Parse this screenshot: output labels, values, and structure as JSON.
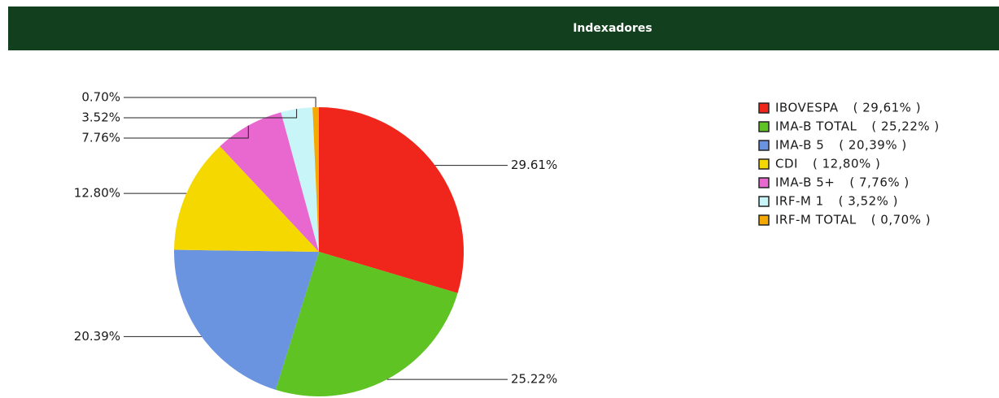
{
  "chart_data": {
    "type": "pie",
    "title": "Indexadores",
    "categories": [
      "IBOVESPA",
      "IMA-B TOTAL",
      "IMA-B 5",
      "CDI",
      "IMA-B 5+",
      "IRF-M 1",
      "IRF-M TOTAL"
    ],
    "values": [
      29.61,
      25.22,
      20.39,
      12.8,
      7.76,
      3.52,
      0.7
    ],
    "value_labels": [
      "29.61%",
      "25.22%",
      "20.39%",
      "12.80%",
      "7.76%",
      "3.52%",
      "0.70%"
    ],
    "legend_labels": [
      "( 29,61% )",
      "( 25,22% )",
      "( 20,39% )",
      "( 12,80% )",
      "( 7,76% )",
      "( 3,52% )",
      "( 0,70% )"
    ],
    "colors": [
      "#f0261c",
      "#5ec323",
      "#6a93e0",
      "#f5d800",
      "#e868cf",
      "#c8f5f8",
      "#f5a800"
    ]
  }
}
